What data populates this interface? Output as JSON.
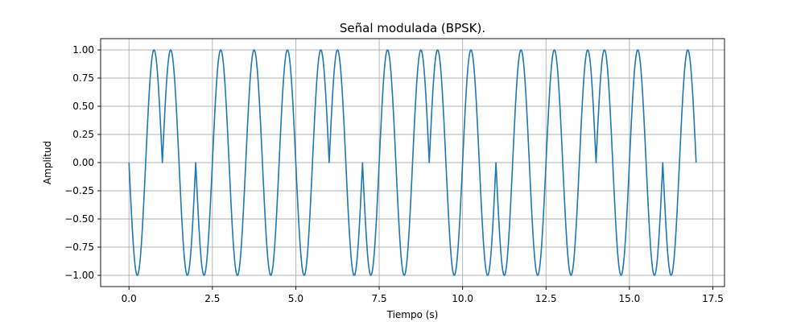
{
  "chart_data": {
    "type": "line",
    "title": "Señal modulada (BPSK).",
    "xlabel": "Tiempo (s)",
    "ylabel": "Amplitud",
    "xlim": [
      -0.85,
      17.85
    ],
    "ylim": [
      -1.1,
      1.1
    ],
    "xticks": [
      0.0,
      2.5,
      5.0,
      7.5,
      10.0,
      12.5,
      15.0,
      17.5
    ],
    "xtick_labels": [
      "0.0",
      "2.5",
      "5.0",
      "7.5",
      "10.0",
      "12.5",
      "15.0",
      "17.5"
    ],
    "yticks": [
      -1.0,
      -0.75,
      -0.5,
      -0.25,
      0.0,
      0.25,
      0.5,
      0.75,
      1.0
    ],
    "ytick_labels": [
      "−1.00",
      "−0.75",
      "−0.50",
      "−0.25",
      "0.00",
      "0.25",
      "0.50",
      "0.75",
      "1.00"
    ],
    "grid": true,
    "line_color": "#1f77b4",
    "carrier_frequency_hz": 1,
    "bit_duration_s": 1,
    "bits": [
      0,
      1,
      0,
      0,
      0,
      0,
      1,
      0,
      0,
      1,
      1,
      0,
      0,
      0,
      1,
      1,
      0
    ],
    "series": [
      {
        "t_start": 0,
        "t_end": 17
      }
    ]
  }
}
